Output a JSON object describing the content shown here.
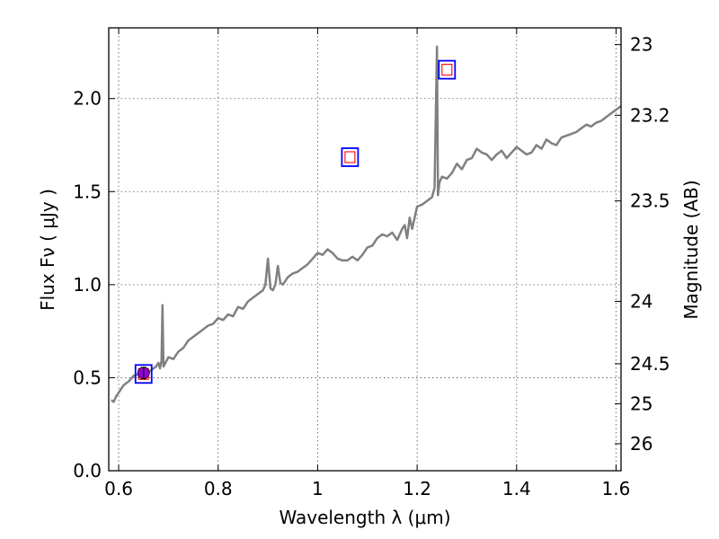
{
  "chart_data": {
    "type": "line",
    "xlabel": "Wavelength  λ (μm)",
    "ylabel": "Flux  Fν  ( μJy )",
    "right_ylabel": "Magnitude (AB)",
    "xlim": [
      0.58,
      1.61
    ],
    "ylim": [
      0.0,
      2.38
    ],
    "x_ticks": [
      {
        "value": 0.6,
        "label": "0.6"
      },
      {
        "value": 0.8,
        "label": "0.8"
      },
      {
        "value": 1.0,
        "label": "1"
      },
      {
        "value": 1.2,
        "label": "1.2"
      },
      {
        "value": 1.4,
        "label": "1.4"
      },
      {
        "value": 1.6,
        "label": "1.6"
      }
    ],
    "y_ticks": [
      {
        "value": 0.0,
        "label": "0.0"
      },
      {
        "value": 0.5,
        "label": "0.5"
      },
      {
        "value": 1.0,
        "label": "1.0"
      },
      {
        "value": 1.5,
        "label": "1.5"
      },
      {
        "value": 2.0,
        "label": "2.0"
      }
    ],
    "right_ticks": [
      {
        "flux": 2.29,
        "label": "23"
      },
      {
        "flux": 1.91,
        "label": "23.2"
      },
      {
        "flux": 1.45,
        "label": "23.5"
      },
      {
        "flux": 0.91,
        "label": "24"
      },
      {
        "flux": 0.575,
        "label": "24.5"
      },
      {
        "flux": 0.36,
        "label": "25"
      },
      {
        "flux": 0.145,
        "label": "26"
      }
    ],
    "grid": true,
    "colors": {
      "spectrum": "#808080",
      "photometry_box": "#0000ff",
      "model_box": "#ff0000",
      "observed_point": "#9400d3"
    },
    "series": [
      {
        "type": "line",
        "x": [
          0.585,
          0.59,
          0.595,
          0.6,
          0.61,
          0.62,
          0.63,
          0.64,
          0.65,
          0.66,
          0.67,
          0.675,
          0.68,
          0.683,
          0.686,
          0.688,
          0.69,
          0.7,
          0.71,
          0.72,
          0.73,
          0.74,
          0.75,
          0.76,
          0.77,
          0.78,
          0.79,
          0.8,
          0.81,
          0.82,
          0.83,
          0.84,
          0.85,
          0.86,
          0.87,
          0.88,
          0.89,
          0.895,
          0.9,
          0.905,
          0.91,
          0.915,
          0.92,
          0.925,
          0.93,
          0.94,
          0.95,
          0.96,
          0.97,
          0.98,
          0.99,
          1.0,
          1.01,
          1.02,
          1.03,
          1.04,
          1.05,
          1.06,
          1.07,
          1.08,
          1.09,
          1.1,
          1.11,
          1.12,
          1.13,
          1.14,
          1.15,
          1.16,
          1.17,
          1.175,
          1.18,
          1.185,
          1.19,
          1.2,
          1.21,
          1.22,
          1.23,
          1.235,
          1.24,
          1.242,
          1.245,
          1.25,
          1.26,
          1.27,
          1.28,
          1.29,
          1.3,
          1.31,
          1.32,
          1.33,
          1.34,
          1.35,
          1.36,
          1.37,
          1.38,
          1.39,
          1.4,
          1.41,
          1.42,
          1.43,
          1.44,
          1.45,
          1.46,
          1.47,
          1.48,
          1.49,
          1.5,
          1.51,
          1.52,
          1.53,
          1.54,
          1.55,
          1.56,
          1.57,
          1.58,
          1.59,
          1.6,
          1.61
        ],
        "y": [
          0.38,
          0.37,
          0.4,
          0.42,
          0.46,
          0.48,
          0.51,
          0.52,
          0.53,
          0.53,
          0.55,
          0.56,
          0.58,
          0.55,
          0.59,
          0.89,
          0.56,
          0.61,
          0.6,
          0.64,
          0.66,
          0.7,
          0.72,
          0.74,
          0.76,
          0.78,
          0.79,
          0.82,
          0.81,
          0.84,
          0.83,
          0.88,
          0.87,
          0.91,
          0.93,
          0.95,
          0.97,
          1.0,
          1.14,
          0.98,
          0.97,
          1.0,
          1.1,
          1.01,
          1.0,
          1.04,
          1.06,
          1.07,
          1.09,
          1.11,
          1.14,
          1.17,
          1.16,
          1.19,
          1.17,
          1.14,
          1.13,
          1.13,
          1.15,
          1.13,
          1.16,
          1.2,
          1.21,
          1.25,
          1.27,
          1.26,
          1.28,
          1.24,
          1.3,
          1.32,
          1.25,
          1.36,
          1.3,
          1.42,
          1.43,
          1.45,
          1.47,
          1.52,
          2.28,
          1.48,
          1.55,
          1.58,
          1.57,
          1.6,
          1.65,
          1.62,
          1.67,
          1.68,
          1.73,
          1.71,
          1.7,
          1.67,
          1.7,
          1.72,
          1.68,
          1.71,
          1.74,
          1.72,
          1.7,
          1.71,
          1.75,
          1.73,
          1.78,
          1.76,
          1.75,
          1.79,
          1.8,
          1.81,
          1.82,
          1.84,
          1.86,
          1.85,
          1.87,
          1.88,
          1.9,
          1.92,
          1.94,
          1.96
        ]
      }
    ],
    "photometry": [
      {
        "x": 0.65,
        "y": 0.52
      },
      {
        "x": 1.065,
        "y": 1.685
      },
      {
        "x": 1.26,
        "y": 2.155
      }
    ],
    "observed": [
      {
        "x": 0.65,
        "y": 0.525,
        "yerr": 0.03
      }
    ]
  }
}
